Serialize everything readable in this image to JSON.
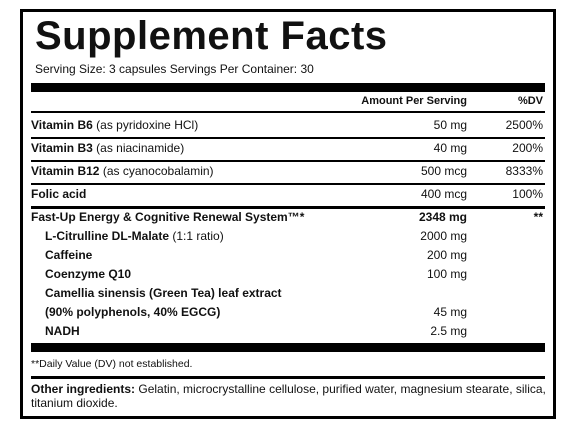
{
  "title": "Supplement Facts",
  "serving": "Serving Size: 3 capsules  Servings Per Container: 30",
  "header": {
    "amount": "Amount Per Serving",
    "dv": "%DV"
  },
  "rows": [
    {
      "name": "Vitamin B6",
      "note": "(as pyridoxine HCl)",
      "amount": "50 mg",
      "dv": "2500%"
    },
    {
      "name": "Vitamin B3",
      "note": "(as niacinamide)",
      "amount": "40 mg",
      "dv": "200%"
    },
    {
      "name": "Vitamin B12",
      "note": "(as cyanocobalamin)",
      "amount": "500 mcg",
      "dv": "8333%"
    },
    {
      "name": "Folic acid",
      "amount": "400 mcg",
      "dv": "100%"
    }
  ],
  "blend": {
    "name": "Fast-Up Energy & Cognitive Renewal System™*",
    "amount": "2348 mg",
    "dv": "**",
    "items": [
      {
        "name": "L-Citrulline DL-Malate",
        "note": "(1:1 ratio)",
        "amount": "2000 mg"
      },
      {
        "name": "Caffeine",
        "amount": "200 mg"
      },
      {
        "name": "Coenzyme Q10",
        "amount": "100 mg"
      },
      {
        "name": "Camellia sinensis (Green Tea) leaf extract",
        "note": "(90% polyphenols, 40% EGCG)",
        "amount": "45 mg"
      },
      {
        "name": "NADH",
        "amount": "2.5 mg"
      }
    ]
  },
  "footnote": "**Daily Value (DV) not established.",
  "other": {
    "label": "Other ingredients:",
    "text": "Gelatin, microcrystalline cellulose, purified water, magnesium stearate, silica, titanium dioxide."
  }
}
